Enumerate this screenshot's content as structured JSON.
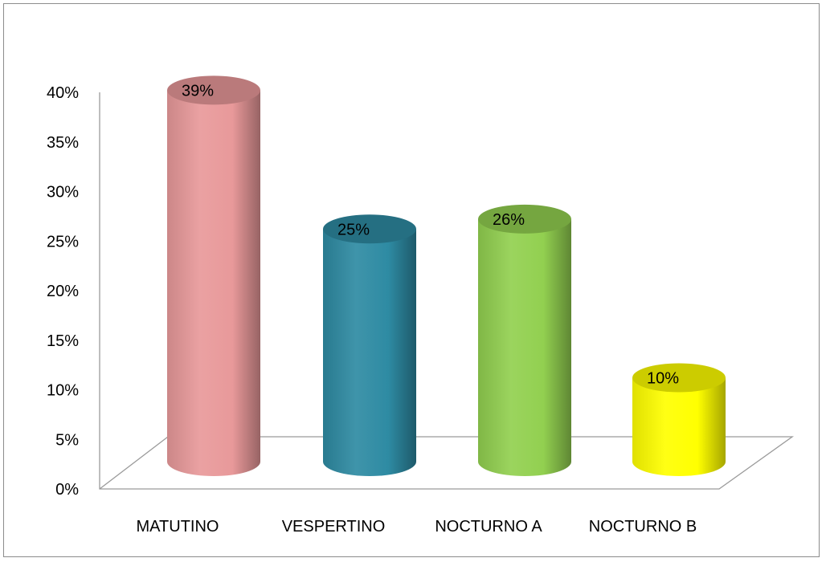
{
  "chart_data": {
    "type": "bar",
    "categories": [
      "MATUTINO",
      "VESPERTINO",
      "NOCTURNO A",
      "NOCTURNO B"
    ],
    "values": [
      39,
      25,
      26,
      10
    ],
    "data_labels": [
      "39%",
      "25%",
      "26%",
      "10%"
    ],
    "colors": [
      "#E8999A",
      "#2E8BA3",
      "#92D050",
      "#FFFF00"
    ],
    "y_tick_labels": [
      "0%",
      "5%",
      "10%",
      "15%",
      "20%",
      "25%",
      "30%",
      "35%",
      "40%"
    ],
    "ylim": [
      0,
      40
    ],
    "title": "",
    "xlabel": "",
    "ylabel": "",
    "grid": false,
    "style": "3d-cylinder"
  }
}
